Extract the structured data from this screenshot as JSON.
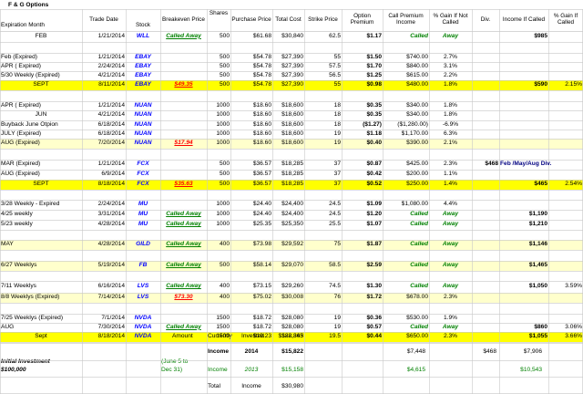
{
  "title": "F & G Options",
  "headers": {
    "expiration_month": "Expiration Month",
    "trade_date": "Trade Date",
    "stock": "Stock",
    "breakeven_price": "Breakeven Price",
    "shares": "Shares",
    "purchase_price": "Purchase Price",
    "total_cost": "Total Cost",
    "strike_price": "Strike Price",
    "option_premium": "Option Premium",
    "call_premium_income": "Call Premium Income",
    "pct_gain_not_called": "% Gain If Not Called",
    "div": "Div.",
    "income_if_called": "Income If Called",
    "pct_gain_if_called": "% Gain If Called"
  },
  "rows": [
    {
      "exp": "FEB",
      "trade": "1/21/2014",
      "stock": "WLL",
      "breakeven": "Called Away",
      "shares": "500",
      "purchase": "$61.68",
      "cost": "$30,840",
      "strike": "62.5",
      "premium": "$1.17",
      "income": "Called",
      "gain_nc": "Away",
      "div": "",
      "income_called": "$985",
      "gain_called": ""
    },
    {
      "exp": "",
      "trade": "",
      "stock": "",
      "breakeven": "",
      "shares": "",
      "purchase": "",
      "cost": "",
      "strike": "",
      "premium": "",
      "income": "",
      "gain_nc": "",
      "div": "",
      "income_called": "",
      "gain_called": ""
    },
    {
      "exp": "Feb (Expired)",
      "trade": "1/21/2014",
      "stock": "EBAY",
      "breakeven": "",
      "shares": "500",
      "purchase": "$54.78",
      "cost": "$27,390",
      "strike": "55",
      "premium": "$1.50",
      "income": "$740.00",
      "gain_nc": "2.7%",
      "div": "",
      "income_called": "",
      "gain_called": ""
    },
    {
      "exp": "APR ( Expired)",
      "trade": "2/24/2014",
      "stock": "EBAY",
      "breakeven": "",
      "shares": "500",
      "purchase": "$54.78",
      "cost": "$27,390",
      "strike": "57.5",
      "premium": "$1.70",
      "income": "$840.00",
      "gain_nc": "3.1%",
      "div": "",
      "income_called": "",
      "gain_called": ""
    },
    {
      "exp": "5/30 Weekly (Expired)",
      "trade": "4/21/2014",
      "stock": "EBAY",
      "breakeven": "",
      "shares": "500",
      "purchase": "$54.78",
      "cost": "$27,390",
      "strike": "56.5",
      "premium": "$1.25",
      "income": "$615.00",
      "gain_nc": "2.2%",
      "div": "",
      "income_called": "",
      "gain_called": ""
    },
    {
      "exp": "SEPT",
      "trade": "8/11/2014",
      "stock": "EBAY",
      "breakeven": "$49.35",
      "shares": "500",
      "purchase": "$54.78",
      "cost": "$27,390",
      "strike": "55",
      "premium": "$0.98",
      "income": "$480.00",
      "gain_nc": "1.8%",
      "div": "",
      "income_called": "$590",
      "gain_called": "2.15%"
    },
    {
      "exp": "",
      "trade": "",
      "stock": "",
      "breakeven": "",
      "shares": "",
      "purchase": "",
      "cost": "",
      "strike": "",
      "premium": "",
      "income": "",
      "gain_nc": "",
      "div": "",
      "income_called": "",
      "gain_called": ""
    },
    {
      "exp": "APR ( Expired)",
      "trade": "1/21/2014",
      "stock": "NUAN",
      "breakeven": "",
      "shares": "1000",
      "purchase": "$18.60",
      "cost": "$18,600",
      "strike": "18",
      "premium": "$0.35",
      "income": "$340.00",
      "gain_nc": "1.8%",
      "div": "",
      "income_called": "",
      "gain_called": ""
    },
    {
      "exp": "JUN",
      "trade": "4/21/2014",
      "stock": "NUAN",
      "breakeven": "",
      "shares": "1000",
      "purchase": "$18.60",
      "cost": "$18,600",
      "strike": "18",
      "premium": "$0.35",
      "income": "$340.00",
      "gain_nc": "1.8%",
      "div": "",
      "income_called": "",
      "gain_called": ""
    },
    {
      "exp": "Buyback June Otpion",
      "trade": "6/18/2014",
      "stock": "NUAN",
      "breakeven": "",
      "shares": "1000",
      "purchase": "$18.60",
      "cost": "$18,600",
      "strike": "18",
      "premium": "($1.27)",
      "income": "($1,280.00)",
      "gain_nc": "-6.9%",
      "div": "",
      "income_called": "",
      "gain_called": ""
    },
    {
      "exp": "JULY (Expired)",
      "trade": "6/18/2014",
      "stock": "NUAN",
      "breakeven": "",
      "shares": "1000",
      "purchase": "$18.60",
      "cost": "$18,600",
      "strike": "19",
      "premium": "$1.18",
      "income": "$1,170.00",
      "gain_nc": "6.3%",
      "div": "",
      "income_called": "",
      "gain_called": ""
    },
    {
      "exp": "AUG (Expired)",
      "trade": "7/20/2014",
      "stock": "NUAN",
      "breakeven": "$17.94",
      "shares": "1000",
      "purchase": "$18.60",
      "cost": "$18,600",
      "strike": "19",
      "premium": "$0.40",
      "income": "$390.00",
      "gain_nc": "2.1%",
      "div": "",
      "income_called": "",
      "gain_called": ""
    },
    {
      "exp": "",
      "trade": "",
      "stock": "",
      "breakeven": "",
      "shares": "",
      "purchase": "",
      "cost": "",
      "strike": "",
      "premium": "",
      "income": "",
      "gain_nc": "",
      "div": "",
      "income_called": "",
      "gain_called": ""
    },
    {
      "exp": "MAR (Expired)",
      "trade": "1/21/2014",
      "stock": "FCX",
      "breakeven": "",
      "shares": "500",
      "purchase": "$36.57",
      "cost": "$18,285",
      "strike": "37",
      "premium": "$0.87",
      "income": "$425.00",
      "gain_nc": "2.3%",
      "div": "$468",
      "income_called": "Feb /May/Aug  Div.",
      "gain_called": ""
    },
    {
      "exp": "AUG (Expired)",
      "trade": "6/9/2014",
      "stock": "FCX",
      "breakeven": "",
      "shares": "500",
      "purchase": "$36.57",
      "cost": "$18,285",
      "strike": "37",
      "premium": "$0.42",
      "income": "$200.00",
      "gain_nc": "1.1%",
      "div": "",
      "income_called": "",
      "gain_called": ""
    },
    {
      "exp": "SEPT",
      "trade": "8/18/2014",
      "stock": "FCX",
      "breakeven": "$35.63",
      "shares": "500",
      "purchase": "$36.57",
      "cost": "$18,285",
      "strike": "37",
      "premium": "$0.52",
      "income": "$250.00",
      "gain_nc": "1.4%",
      "div": "",
      "income_called": "$465",
      "gain_called": "2.54%"
    },
    {
      "exp": "",
      "trade": "",
      "stock": "",
      "breakeven": "",
      "shares": "",
      "purchase": "",
      "cost": "",
      "strike": "",
      "premium": "",
      "income": "",
      "gain_nc": "",
      "div": "",
      "income_called": "",
      "gain_called": ""
    },
    {
      "exp": "3/28 Weekly - Expired",
      "trade": "2/24/2014",
      "stock": "MU",
      "breakeven": "",
      "shares": "1000",
      "purchase": "$24.40",
      "cost": "$24,400",
      "strike": "24.5",
      "premium": "$1.09",
      "income": "$1,080.00",
      "gain_nc": "4.4%",
      "div": "",
      "income_called": "",
      "gain_called": ""
    },
    {
      "exp": "4/25 weekly",
      "trade": "3/31/2014",
      "stock": "MU",
      "breakeven": "Called Away",
      "shares": "1000",
      "purchase": "$24.40",
      "cost": "$24,400",
      "strike": "24.5",
      "premium": "$1.20",
      "income": "Called",
      "gain_nc": "Away",
      "div": "",
      "income_called": "$1,190",
      "gain_called": ""
    },
    {
      "exp": "5/23 weekly",
      "trade": "4/28/2014",
      "stock": "MU",
      "breakeven": "Called Away",
      "shares": "1000",
      "purchase": "$25.35",
      "cost": "$25,350",
      "strike": "25.5",
      "premium": "$1.07",
      "income": "Called",
      "gain_nc": "Away",
      "div": "",
      "income_called": "$1,210",
      "gain_called": ""
    },
    {
      "exp": "",
      "trade": "",
      "stock": "",
      "breakeven": "",
      "shares": "",
      "purchase": "",
      "cost": "",
      "strike": "",
      "premium": "",
      "income": "",
      "gain_nc": "",
      "div": "",
      "income_called": "",
      "gain_called": ""
    },
    {
      "exp": "MAY",
      "trade": "4/28/2014",
      "stock": "GILD",
      "breakeven": "Called Away",
      "shares": "400",
      "purchase": "$73.98",
      "cost": "$29,592",
      "strike": "75",
      "premium": "$1.87",
      "income": "Called",
      "gain_nc": "Away",
      "div": "",
      "income_called": "$1,146",
      "gain_called": ""
    },
    {
      "exp": "",
      "trade": "",
      "stock": "",
      "breakeven": "",
      "shares": "",
      "purchase": "",
      "cost": "",
      "strike": "",
      "premium": "",
      "income": "",
      "gain_nc": "",
      "div": "",
      "income_called": "",
      "gain_called": ""
    },
    {
      "exp": "6/27 Weeklys",
      "trade": "5/19/2014",
      "stock": "FB",
      "breakeven": "Called Away",
      "shares": "500",
      "purchase": "$58.14",
      "cost": "$29,070",
      "strike": "58.5",
      "premium": "$2.59",
      "income": "Called",
      "gain_nc": "Away",
      "div": "",
      "income_called": "$1,465",
      "gain_called": ""
    },
    {
      "exp": "",
      "trade": "",
      "stock": "",
      "breakeven": "",
      "shares": "",
      "purchase": "",
      "cost": "",
      "strike": "",
      "premium": "",
      "income": "",
      "gain_nc": "",
      "div": "",
      "income_called": "",
      "gain_called": ""
    },
    {
      "exp": "7/11 Weeklys",
      "trade": "6/16/2014",
      "stock": "LVS",
      "breakeven": "Called Away",
      "shares": "400",
      "purchase": "$73.15",
      "cost": "$29,260",
      "strike": "74.5",
      "premium": "$1.30",
      "income": "Called",
      "gain_nc": "Away",
      "div": "",
      "income_called": "$1,050",
      "gain_called": "3.59%"
    },
    {
      "exp": "8/8 Weeklys (Expired)",
      "trade": "7/14/2014",
      "stock": "LVS",
      "breakeven": "$73.30",
      "shares": "400",
      "purchase": "$75.02",
      "cost": "$30,008",
      "strike": "76",
      "premium": "$1.72",
      "income": "$678.00",
      "gain_nc": "2.3%",
      "div": "",
      "income_called": "",
      "gain_called": ""
    },
    {
      "exp": "",
      "trade": "",
      "stock": "",
      "breakeven": "",
      "shares": "",
      "purchase": "",
      "cost": "",
      "strike": "",
      "premium": "",
      "income": "",
      "gain_nc": "",
      "div": "",
      "income_called": "",
      "gain_called": ""
    },
    {
      "exp": "7/25 Weeklys (Expired)",
      "trade": "7/1/2014",
      "stock": "NVDA",
      "breakeven": "",
      "shares": "1500",
      "purchase": "$18.72",
      "cost": "$28,080",
      "strike": "19",
      "premium": "$0.36",
      "income": "$530.00",
      "gain_nc": "1.9%",
      "div": "",
      "income_called": "",
      "gain_called": ""
    },
    {
      "exp": "AUG",
      "trade": "7/30/2014",
      "stock": "NVDA",
      "breakeven": "Called Away",
      "shares": "1500",
      "purchase": "$18.72",
      "cost": "$28,080",
      "strike": "19",
      "premium": "$0.57",
      "income": "Called",
      "gain_nc": "Away",
      "div": "",
      "income_called": "$860",
      "gain_called": "3.06%"
    },
    {
      "exp": "Sept",
      "trade": "8/18/2014",
      "stock": "NVDA",
      "breakeven": "",
      "shares": "1500",
      "purchase": "$19.23",
      "cost": "$28,845",
      "strike": "19.5",
      "premium": "$0.44",
      "income": "$650.00",
      "gain_nc": "2.3%",
      "div": "",
      "income_called": "$1,055",
      "gain_called": "3.66%"
    }
  ],
  "summary": {
    "amount_label": "Amount",
    "currently_label": "Currently",
    "invested_label": "Invested",
    "invested_value": "$182,363",
    "income_label": "Income",
    "year_2014": "2014",
    "income_2014": "$15,822",
    "call_income_2014": "$7,448",
    "div_2014": "$468",
    "income_called_2014": "$7,906",
    "initial_investment_label": "Initial Investment",
    "initial_investment_value": "$100,000",
    "june_note_1": "(June 5 to",
    "june_note_2": "Dec 31)",
    "year_2013": "2013",
    "income_2013": "$15,158",
    "call_income_2013": "$4,615",
    "income_called_2013": "$10,543",
    "total_label": "Total",
    "total_value": "$30,980"
  }
}
